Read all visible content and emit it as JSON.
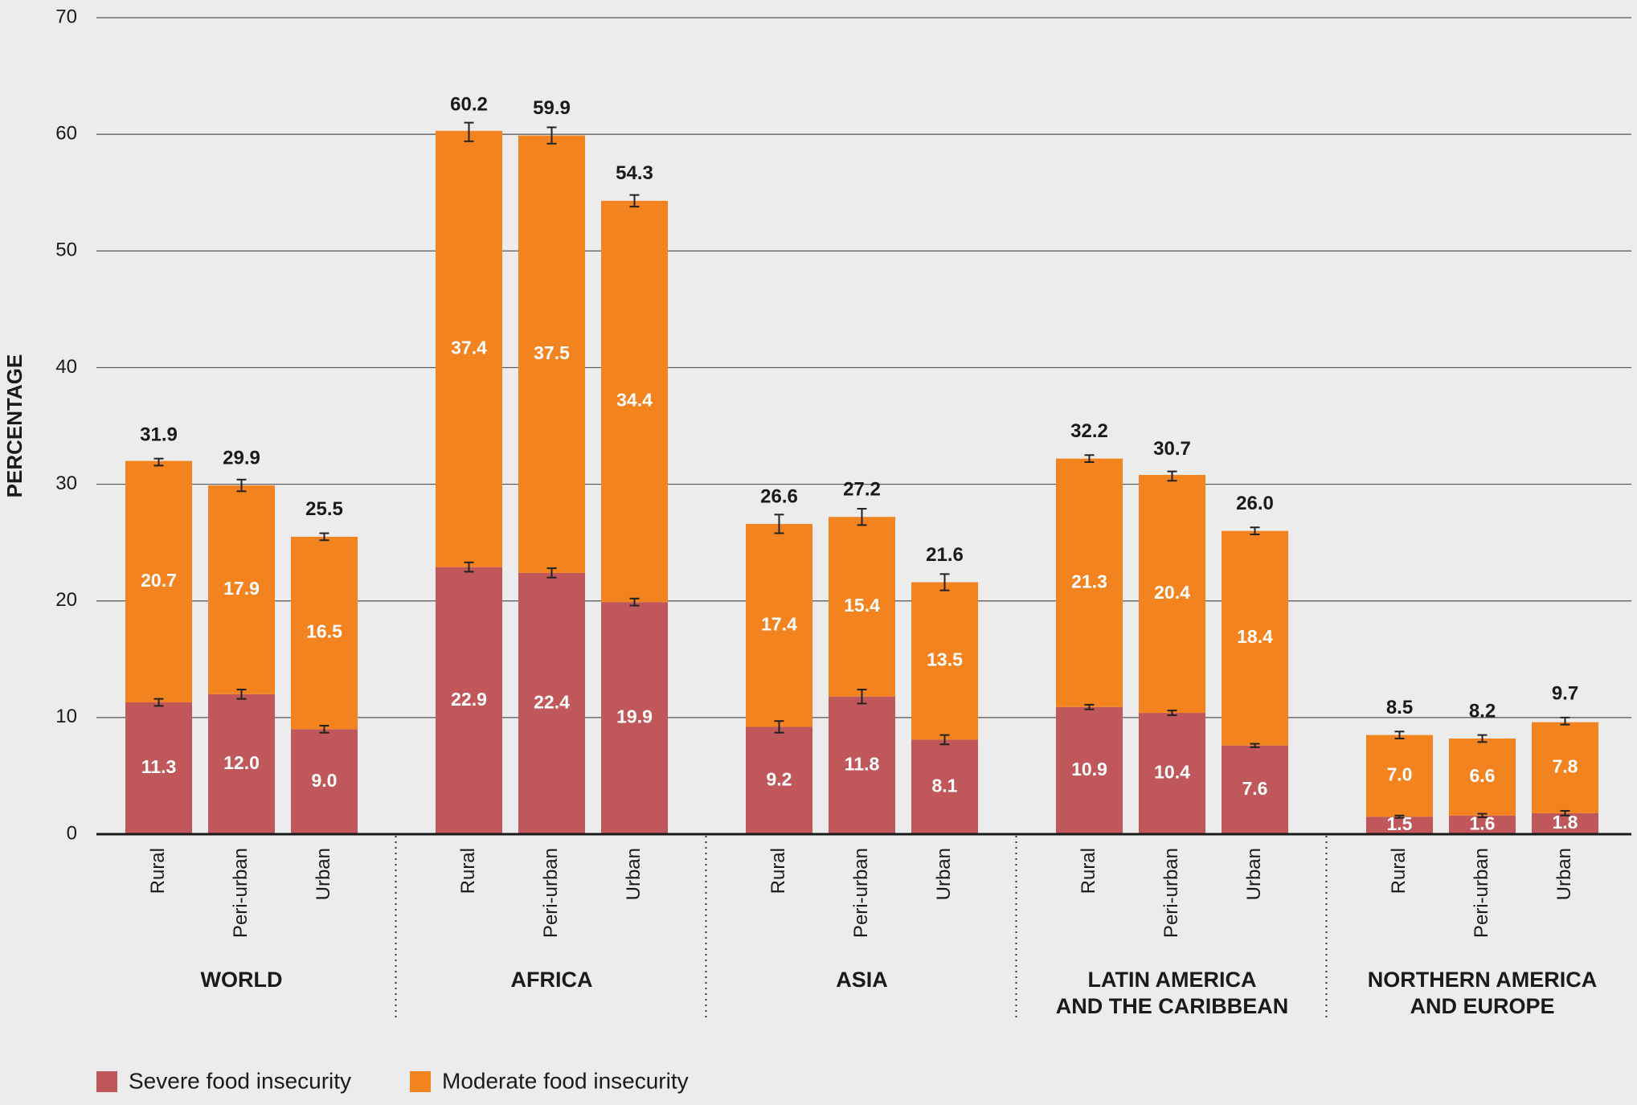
{
  "chart_data": {
    "type": "bar",
    "stacked": true,
    "grid": true,
    "y_label": "PERCENTAGE",
    "ylim": [
      0,
      70
    ],
    "yticks": [
      0,
      10,
      20,
      30,
      40,
      50,
      60,
      70
    ],
    "groups": [
      [
        "WORLD"
      ],
      [
        "AFRICA"
      ],
      [
        "ASIA"
      ],
      [
        "LATIN AMERICA",
        "AND THE CARIBBEAN"
      ],
      [
        "NORTHERN AMERICA",
        "AND EUROPE"
      ]
    ],
    "categories": [
      "Rural",
      "Peri-urban",
      "Urban",
      "Rural",
      "Peri-urban",
      "Urban",
      "Rural",
      "Peri-urban",
      "Urban",
      "Rural",
      "Peri-urban",
      "Urban",
      "Rural",
      "Peri-urban",
      "Urban"
    ],
    "series": [
      {
        "name": "Severe food insecurity",
        "color": "#c0575a",
        "values": [
          11.3,
          12.0,
          9.0,
          22.9,
          22.4,
          19.9,
          9.2,
          11.8,
          8.1,
          10.9,
          10.4,
          7.6,
          1.5,
          1.6,
          1.8
        ],
        "value_labels": [
          "11.3",
          "12.0",
          "9.0",
          "22.9",
          "22.4",
          "19.9",
          "9.2",
          "11.8",
          "8.1",
          "10.9",
          "10.4",
          "7.6",
          "1.5",
          "1.6",
          "1.8"
        ],
        "errors": [
          0.3,
          0.4,
          0.3,
          0.4,
          0.4,
          0.3,
          0.5,
          0.6,
          0.4,
          0.2,
          0.2,
          0.15,
          0.1,
          0.15,
          0.2
        ]
      },
      {
        "name": "Moderate food insecurity",
        "color": "#f3831f",
        "values": [
          20.7,
          17.9,
          16.5,
          37.4,
          37.5,
          34.4,
          17.4,
          15.4,
          13.5,
          21.3,
          20.4,
          18.4,
          7.0,
          6.6,
          7.8
        ],
        "value_labels": [
          "20.7",
          "17.9",
          "16.5",
          "37.4",
          "37.5",
          "34.4",
          "17.4",
          "15.4",
          "13.5",
          "21.3",
          "20.4",
          "18.4",
          "7.0",
          "6.6",
          "7.8"
        ]
      }
    ],
    "totals": {
      "values": [
        31.9,
        29.9,
        25.5,
        60.2,
        59.9,
        54.3,
        26.6,
        27.2,
        21.6,
        32.2,
        30.7,
        26.0,
        8.5,
        8.2,
        9.7
      ],
      "value_labels": [
        "31.9",
        "29.9",
        "25.5",
        "60.2",
        "59.9",
        "54.3",
        "26.6",
        "27.2",
        "21.6",
        "32.2",
        "30.7",
        "26.0",
        "8.5",
        "8.2",
        "9.7"
      ],
      "errors": [
        0.3,
        0.5,
        0.3,
        0.8,
        0.7,
        0.5,
        0.8,
        0.7,
        0.7,
        0.3,
        0.4,
        0.3,
        0.3,
        0.3,
        0.3
      ]
    }
  }
}
